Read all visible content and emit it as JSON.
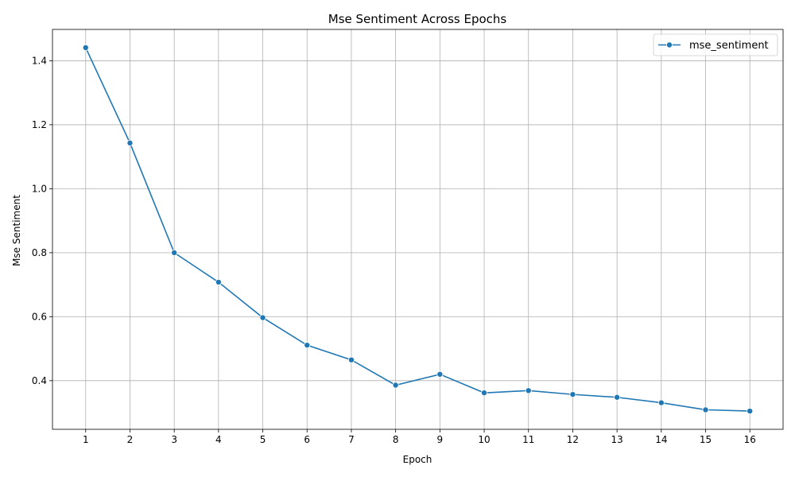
{
  "chart_data": {
    "type": "line",
    "title": "Mse Sentiment Across Epochs",
    "xlabel": "Epoch",
    "ylabel": "Mse Sentiment",
    "x": [
      1,
      2,
      3,
      4,
      5,
      6,
      7,
      8,
      9,
      10,
      11,
      12,
      13,
      14,
      15,
      16
    ],
    "series": [
      {
        "name": "mse_sentiment",
        "color": "#1f77b4",
        "marker": "circle",
        "values": [
          1.441,
          1.143,
          0.8,
          0.708,
          0.597,
          0.511,
          0.465,
          0.386,
          0.42,
          0.362,
          0.369,
          0.357,
          0.348,
          0.331,
          0.309,
          0.305
        ]
      }
    ],
    "xlim": [
      0.25,
      16.75
    ],
    "ylim": [
      0.248,
      1.498
    ],
    "yticks": [
      0.4,
      0.6,
      0.8,
      1.0,
      1.2,
      1.4
    ],
    "ytick_labels": [
      "0.4",
      "0.6",
      "0.8",
      "1.0",
      "1.2",
      "1.4"
    ],
    "xticks": [
      1,
      2,
      3,
      4,
      5,
      6,
      7,
      8,
      9,
      10,
      11,
      12,
      13,
      14,
      15,
      16
    ],
    "xtick_labels": [
      "1",
      "2",
      "3",
      "4",
      "5",
      "6",
      "7",
      "8",
      "9",
      "10",
      "11",
      "12",
      "13",
      "14",
      "15",
      "16"
    ],
    "grid": true,
    "grid_color": "#b0b0b0",
    "legend_position": "top-right"
  }
}
